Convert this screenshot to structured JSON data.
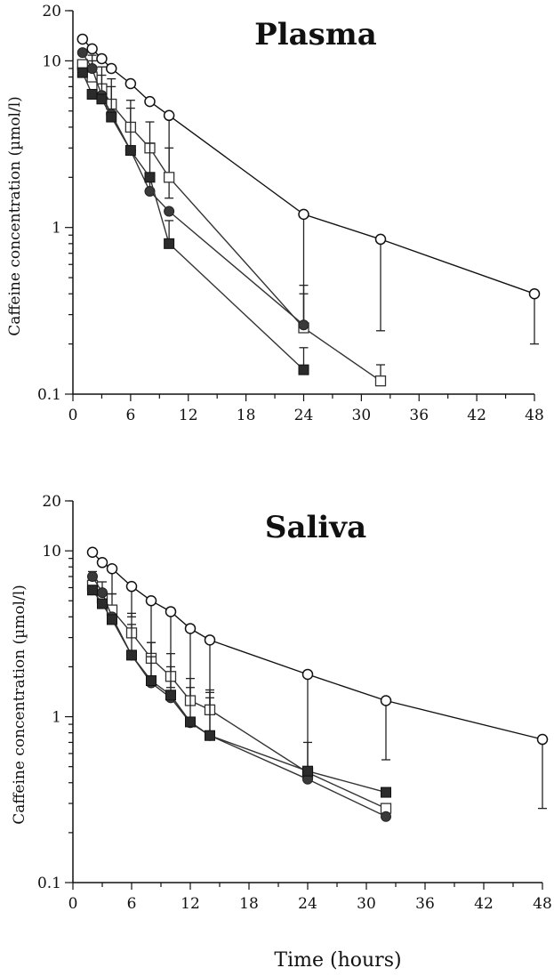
{
  "chart_data": [
    {
      "type": "line",
      "title": "Plasma",
      "ylabel": "Caffeine concentration (µmol/l)",
      "xlabel": "",
      "y_scale": "log",
      "ylim": [
        0.1,
        20
      ],
      "xlim": [
        0,
        48
      ],
      "x_ticks": [
        0,
        6,
        12,
        18,
        24,
        30,
        36,
        42,
        48
      ],
      "y_ticks": [
        0.1,
        1,
        10,
        20
      ],
      "y_tick_labels": [
        "0.1",
        "1",
        "10",
        "20"
      ],
      "grid": false,
      "series": [
        {
          "marker": "open-circle",
          "x": [
            1,
            2,
            3,
            4,
            6,
            8,
            10,
            24,
            32,
            48
          ],
          "y": [
            13.5,
            11.8,
            10.3,
            9.0,
            7.3,
            5.7,
            4.7,
            1.2,
            0.85,
            0.4
          ],
          "err_lo": [
            null,
            null,
            null,
            null,
            null,
            null,
            1.5,
            0.25,
            0.24,
            0.2
          ]
        },
        {
          "marker": "open-square",
          "x": [
            1,
            2,
            3,
            4,
            6,
            8,
            10,
            24,
            32
          ],
          "y": [
            9.5,
            8.0,
            6.8,
            5.5,
            4.0,
            3.0,
            2.0,
            0.25,
            0.12
          ],
          "err_hi": [
            null,
            10.8,
            9.2,
            7.8,
            5.8,
            4.3,
            3.0,
            0.45,
            0.15
          ]
        },
        {
          "marker": "filled-circle",
          "x": [
            1,
            2,
            3,
            4,
            6,
            8,
            10,
            24
          ],
          "y": [
            11.2,
            9.0,
            6.2,
            4.8,
            2.9,
            1.65,
            1.25,
            0.26
          ],
          "err_hi": [
            null,
            10.0,
            8.2,
            7.0,
            5.2,
            3.2,
            null,
            0.4
          ]
        },
        {
          "marker": "filled-square",
          "x": [
            1,
            2,
            3,
            4,
            6,
            8,
            10,
            24
          ],
          "y": [
            8.5,
            6.3,
            5.9,
            4.6,
            2.9,
            2.0,
            0.8,
            0.14
          ],
          "err_hi": [
            null,
            null,
            null,
            null,
            null,
            null,
            1.1,
            0.19
          ]
        }
      ]
    },
    {
      "type": "line",
      "title": "Saliva",
      "ylabel": "Caffeine concentration (µmol/l)",
      "xlabel": "Time (hours)",
      "y_scale": "log",
      "ylim": [
        0.1,
        20
      ],
      "xlim": [
        0,
        48
      ],
      "x_ticks": [
        0,
        6,
        12,
        18,
        24,
        30,
        36,
        42,
        48
      ],
      "y_ticks": [
        0.1,
        1,
        10,
        20
      ],
      "y_tick_labels": [
        "0.1",
        "1",
        "10",
        "20"
      ],
      "grid": false,
      "series": [
        {
          "marker": "open-circle",
          "x": [
            2,
            3,
            4,
            6,
            8,
            10,
            12,
            14,
            24,
            32,
            48
          ],
          "y": [
            9.8,
            8.5,
            7.8,
            6.1,
            5.0,
            4.3,
            3.4,
            2.9,
            1.8,
            1.25,
            0.73
          ],
          "err_lo": [
            null,
            null,
            5.5,
            4.0,
            2.2,
            1.5,
            1.2,
            1.1,
            0.5,
            0.55,
            0.28
          ]
        },
        {
          "marker": "open-square",
          "x": [
            2,
            3,
            4,
            6,
            8,
            10,
            12,
            14,
            24,
            32
          ],
          "y": [
            6.2,
            5.2,
            4.4,
            3.2,
            2.25,
            1.75,
            1.25,
            1.1,
            0.46,
            0.28
          ],
          "err_hi": [
            7.5,
            6.5,
            5.5,
            4.2,
            2.8,
            2.4,
            1.7,
            1.45,
            0.7,
            null
          ]
        },
        {
          "marker": "filled-circle",
          "x": [
            2,
            3,
            4,
            6,
            8,
            10,
            12,
            14,
            24,
            32
          ],
          "y": [
            7.0,
            5.6,
            4.0,
            2.35,
            1.6,
            1.3,
            0.92,
            0.77,
            0.42,
            0.25
          ],
          "err_hi": [
            null,
            null,
            null,
            3.6,
            2.3,
            2.0,
            1.5,
            1.3,
            null,
            null
          ]
        },
        {
          "marker": "filled-square",
          "x": [
            2,
            3,
            4,
            6,
            8,
            10,
            12,
            14,
            24,
            32
          ],
          "y": [
            5.8,
            4.8,
            3.85,
            2.35,
            1.65,
            1.35,
            0.93,
            0.77,
            0.47,
            0.35
          ],
          "err_hi": [
            null,
            null,
            null,
            null,
            2.8,
            null,
            null,
            1.4,
            null,
            null
          ]
        }
      ]
    }
  ]
}
